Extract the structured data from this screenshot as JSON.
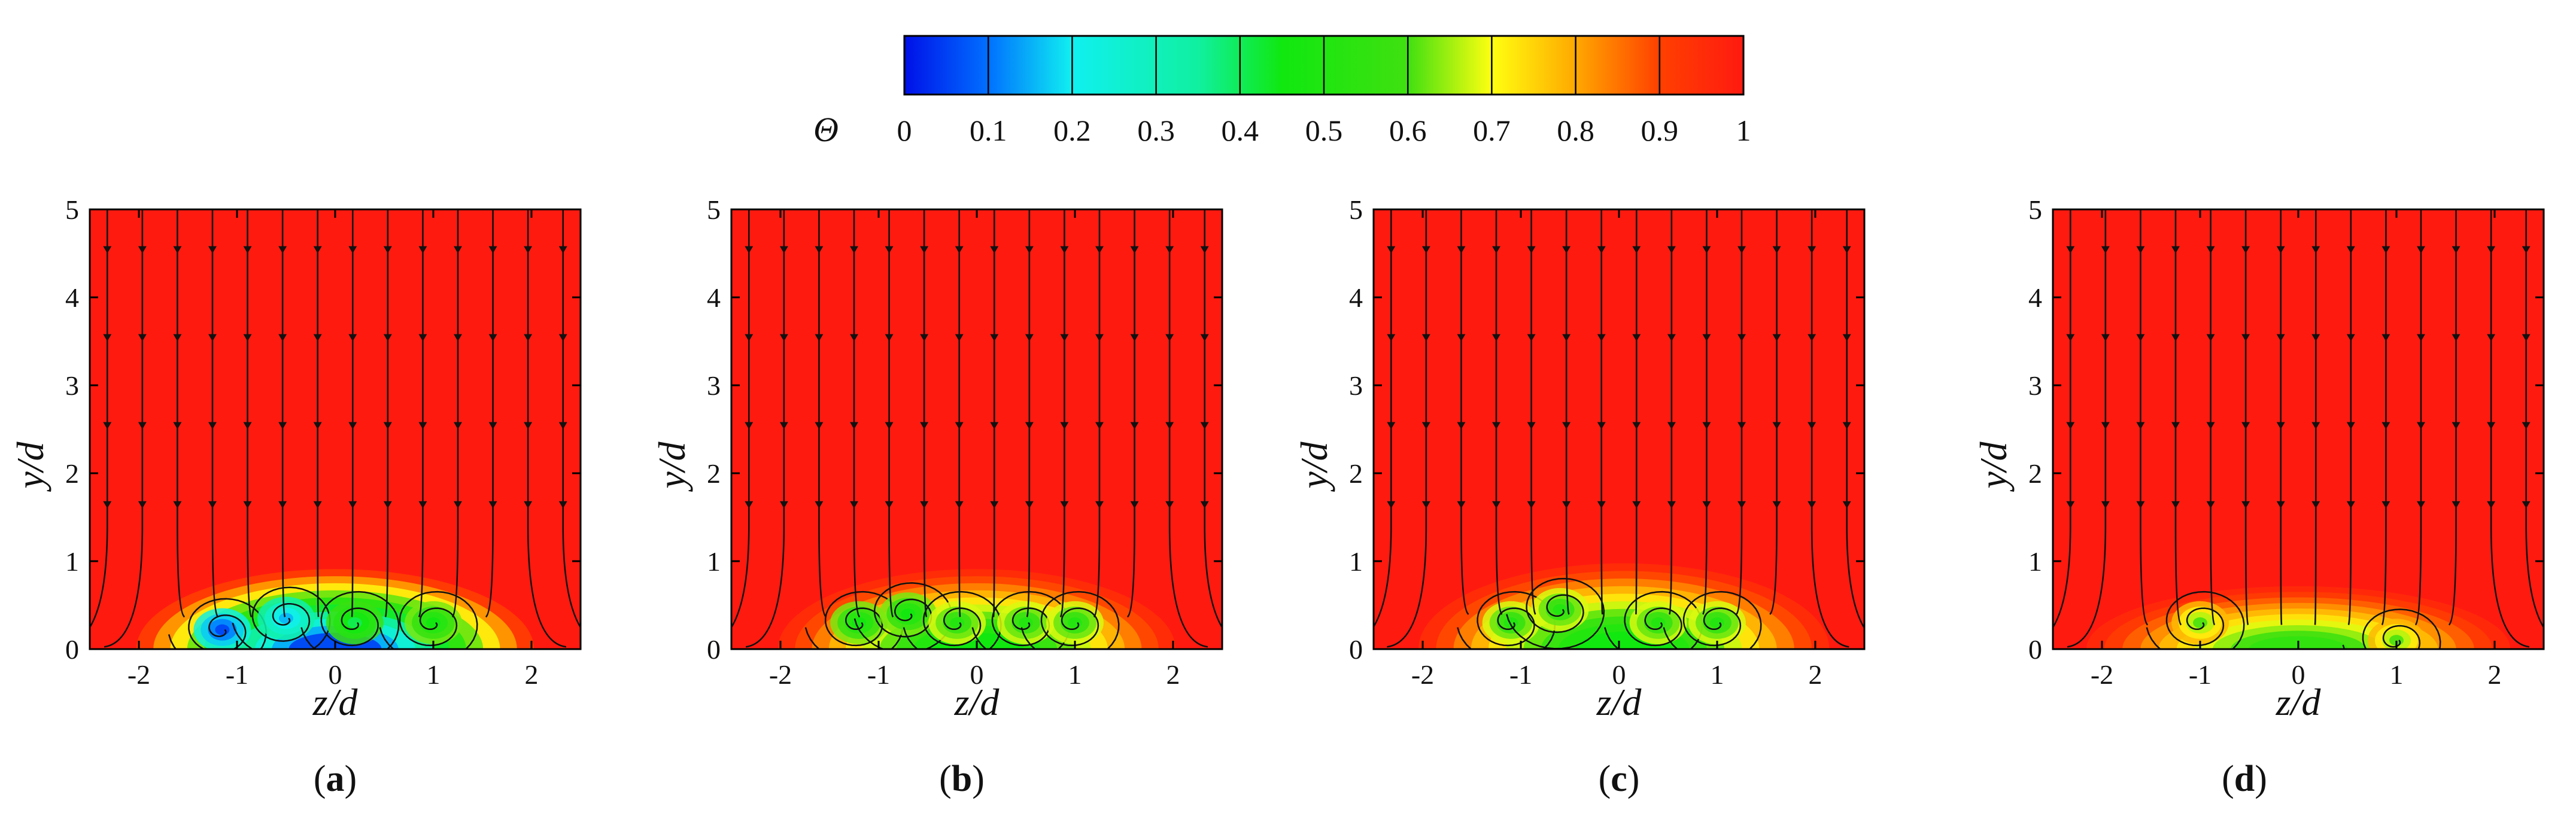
{
  "colors": {
    "red": "#ff1a10",
    "orange": "#ff8c00",
    "yellow": "#ffee10",
    "green": "#1ee61a",
    "cyan": "#10f0f0",
    "blue": "#0010e8"
  },
  "colorbar": {
    "title": "Θ",
    "ticks": [
      "0",
      "0.1",
      "0.2",
      "0.3",
      "0.4",
      "0.5",
      "0.6",
      "0.7",
      "0.8",
      "0.9",
      "1"
    ],
    "range": [
      0,
      1
    ],
    "stops": [
      {
        "value": 0.0,
        "color": "#0010e8"
      },
      {
        "value": 0.1,
        "color": "#0070ff"
      },
      {
        "value": 0.2,
        "color": "#10f0f0"
      },
      {
        "value": 0.35,
        "color": "#10f0a0"
      },
      {
        "value": 0.45,
        "color": "#10e810"
      },
      {
        "value": 0.6,
        "color": "#40e010"
      },
      {
        "value": 0.7,
        "color": "#ffff10"
      },
      {
        "value": 0.8,
        "color": "#ffa800"
      },
      {
        "value": 0.9,
        "color": "#ff4000"
      },
      {
        "value": 1.0,
        "color": "#ff1a10"
      }
    ]
  },
  "chart_data": [
    {
      "type": "heatmap",
      "panel": "a",
      "caption": {
        "open": "(",
        "letter": "a",
        "close": ")"
      },
      "xlabel": "z/d",
      "ylabel": "y/d",
      "xlim": [
        -2.5,
        2.5
      ],
      "ylim": [
        0,
        5
      ],
      "xticks": [
        "-2",
        "-1",
        "0",
        "1",
        "2"
      ],
      "yticks": [
        "0",
        "1",
        "2",
        "3",
        "4",
        "5"
      ],
      "coolant_region": {
        "z_range": [
          -1.5,
          1.5
        ],
        "height": 0.7,
        "min_theta": 0.05
      },
      "vortices": [
        {
          "z": -1.15,
          "y": 0.22,
          "theta": 0.05
        },
        {
          "z": -0.5,
          "y": 0.35,
          "theta": 0.15
        },
        {
          "z": 0.2,
          "y": 0.3,
          "theta": 0.4
        },
        {
          "z": 1.0,
          "y": 0.3,
          "theta": 0.45
        }
      ]
    },
    {
      "type": "heatmap",
      "panel": "b",
      "caption": {
        "open": "(",
        "letter": "b",
        "close": ")"
      },
      "xlabel": "z/d",
      "ylabel": "y/d",
      "xlim": [
        -2.5,
        2.5
      ],
      "ylim": [
        0,
        5
      ],
      "xticks": [
        "-2",
        "-1",
        "0",
        "1",
        "2"
      ],
      "yticks": [
        "0",
        "1",
        "2",
        "3",
        "4",
        "5"
      ],
      "coolant_region": {
        "z_range": [
          -1.5,
          1.5
        ],
        "height": 0.7,
        "min_theta": 0.45
      },
      "vortices": [
        {
          "z": -1.2,
          "y": 0.3,
          "theta": 0.45
        },
        {
          "z": -0.7,
          "y": 0.4,
          "theta": 0.45
        },
        {
          "z": -0.2,
          "y": 0.3,
          "theta": 0.5
        },
        {
          "z": 0.5,
          "y": 0.3,
          "theta": 0.5
        },
        {
          "z": 1.0,
          "y": 0.3,
          "theta": 0.5
        }
      ]
    },
    {
      "type": "heatmap",
      "panel": "c",
      "caption": {
        "open": "(",
        "letter": "c",
        "close": ")"
      },
      "xlabel": "z/d",
      "ylabel": "y/d",
      "xlim": [
        -2.5,
        2.5
      ],
      "ylim": [
        0,
        5
      ],
      "xticks": [
        "-2",
        "-1",
        "0",
        "1",
        "2"
      ],
      "yticks": [
        "0",
        "1",
        "2",
        "3",
        "4",
        "5"
      ],
      "coolant_region": {
        "z_range": [
          -1.5,
          1.6
        ],
        "height": 0.75,
        "min_theta": 0.45
      },
      "vortices": [
        {
          "z": -1.1,
          "y": 0.3,
          "theta": 0.5
        },
        {
          "z": -0.6,
          "y": 0.45,
          "theta": 0.5
        },
        {
          "z": 0.4,
          "y": 0.3,
          "theta": 0.5
        },
        {
          "z": 1.0,
          "y": 0.3,
          "theta": 0.5
        }
      ]
    },
    {
      "type": "heatmap",
      "panel": "d",
      "caption": {
        "open": "(",
        "letter": "d",
        "close": ")"
      },
      "xlabel": "z/d",
      "ylabel": "y/d",
      "xlim": [
        -2.5,
        2.5
      ],
      "ylim": [
        0,
        5
      ],
      "xticks": [
        "-2",
        "-1",
        "0",
        "1",
        "2"
      ],
      "yticks": [
        "0",
        "1",
        "2",
        "3",
        "4",
        "5"
      ],
      "coolant_region": {
        "z_range": [
          -1.6,
          1.6
        ],
        "height": 0.55,
        "min_theta": 0.55
      },
      "vortices": [
        {
          "z": -1.0,
          "y": 0.3,
          "theta": 0.6
        },
        {
          "z": 1.0,
          "y": 0.1,
          "theta": 0.6
        }
      ]
    }
  ]
}
